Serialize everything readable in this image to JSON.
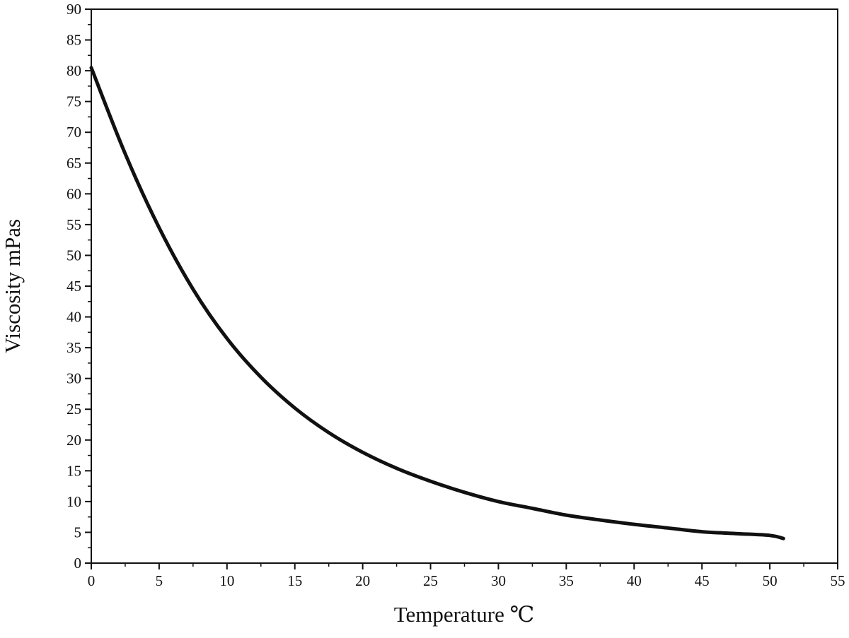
{
  "chart_data": {
    "type": "line",
    "title": "",
    "xlabel": "Temperature ℃",
    "ylabel": "Viscosity mPas",
    "xlim": [
      0,
      55
    ],
    "ylim": [
      0,
      90
    ],
    "x_ticks": [
      "0",
      "5",
      "10",
      "15",
      "20",
      "25",
      "30",
      "35",
      "40",
      "45",
      "50",
      "55"
    ],
    "y_ticks": [
      "0",
      "5",
      "10",
      "15",
      "20",
      "25",
      "30",
      "35",
      "40",
      "45",
      "50",
      "55",
      "60",
      "65",
      "70",
      "75",
      "80",
      "85",
      "90"
    ],
    "grid": false,
    "legend": "none",
    "series": [
      {
        "x": [
          0,
          2.5,
          5,
          7.5,
          10,
          12.5,
          15,
          17.5,
          20,
          22.5,
          25,
          27.5,
          30,
          32.5,
          35,
          37.5,
          40,
          42.5,
          45,
          47.5,
          50,
          51
        ],
        "y": [
          80.5,
          66.5,
          54.5,
          44.5,
          36.5,
          30.2,
          25.2,
          21.2,
          18.0,
          15.4,
          13.3,
          11.5,
          10.0,
          8.9,
          7.8,
          7.0,
          6.3,
          5.7,
          5.1,
          4.8,
          4.5,
          4.0
        ]
      }
    ]
  }
}
